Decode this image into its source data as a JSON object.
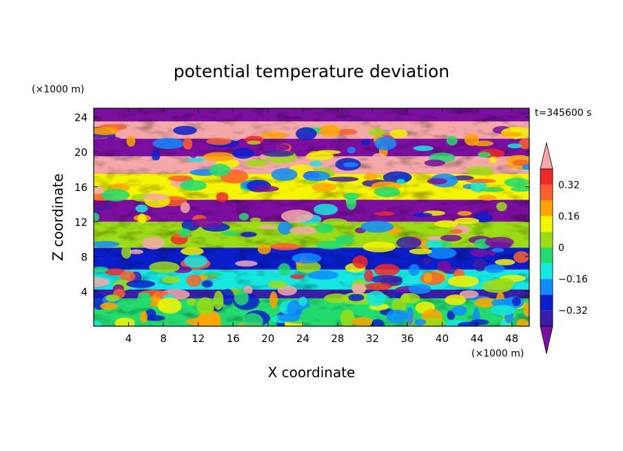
{
  "chart_data": {
    "type": "heatmap",
    "title": "potential temperature deviation",
    "xlabel": "X coordinate",
    "ylabel": "Z coordinate",
    "x_unit": "(×1000 m)",
    "y_unit": "(×1000 m)",
    "time_label": "t=345600 s",
    "xlim": [
      0,
      50
    ],
    "ylim": [
      0,
      25
    ],
    "x_ticks": [
      4,
      8,
      12,
      16,
      20,
      24,
      28,
      32,
      36,
      40,
      44,
      48
    ],
    "y_ticks": [
      4,
      8,
      12,
      16,
      20,
      24
    ],
    "colorbar": {
      "levels": [
        -0.4,
        -0.32,
        -0.24,
        -0.16,
        -0.08,
        0,
        0.08,
        0.16,
        0.24,
        0.32,
        0.4
      ],
      "labels": [
        "0.32",
        "0.16",
        "0",
        "−0.16",
        "−0.32"
      ],
      "label_values": [
        0.32,
        0.16,
        0,
        -0.16,
        -0.32
      ],
      "colors": [
        "#7b0fa0",
        "#3a1ea8",
        "#0a1ecc",
        "#0e8cff",
        "#14e8e0",
        "#22dc6e",
        "#9cdc14",
        "#f5f500",
        "#ffa400",
        "#ff5f2c",
        "#f02828",
        "#f5a8a8"
      ],
      "extend": "both"
    }
  }
}
